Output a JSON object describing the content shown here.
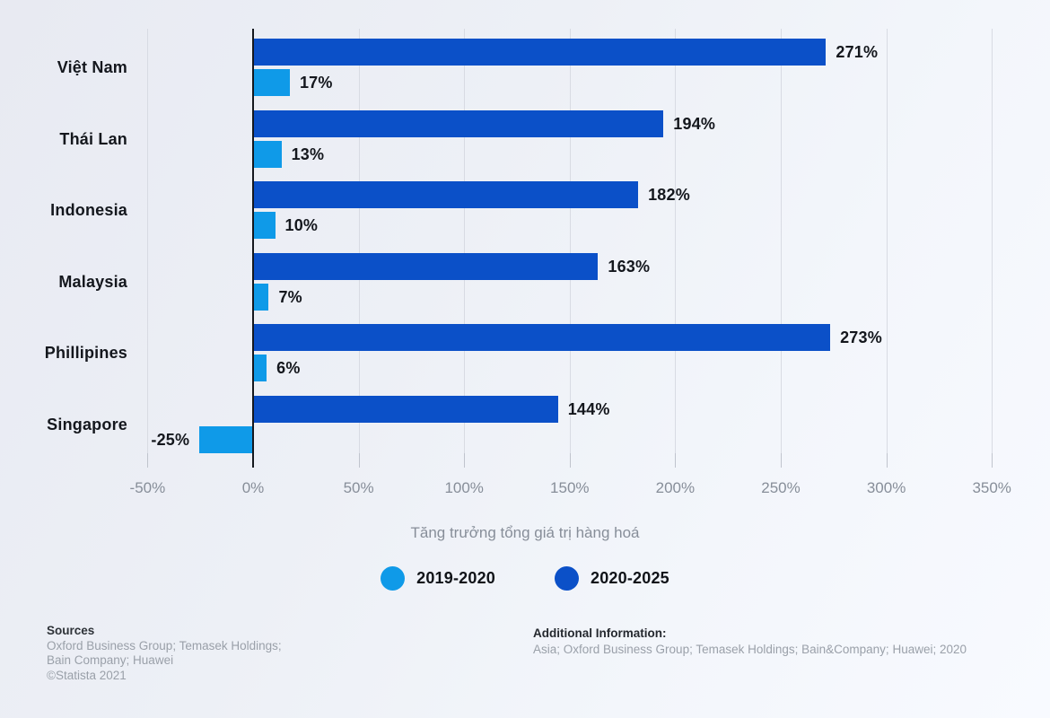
{
  "chart_data": {
    "type": "bar",
    "orientation": "horizontal",
    "categories": [
      "Việt Nam",
      "Thái Lan",
      "Indonesia",
      "Malaysia",
      "Phillipines",
      "Singapore"
    ],
    "series": [
      {
        "name": "2020-2025",
        "color": "#0b50c8",
        "values": [
          271,
          194,
          182,
          163,
          273,
          144
        ],
        "labels": [
          "271%",
          "194%",
          "182%",
          "163%",
          "273%",
          "144%"
        ]
      },
      {
        "name": "2019-2020",
        "color": "#0f9ae8",
        "values": [
          17,
          13,
          10,
          7,
          6,
          -25
        ],
        "labels": [
          "17%",
          "13%",
          "10%",
          "7%",
          "6%",
          "-25%"
        ]
      }
    ],
    "x_axis": {
      "range": [
        -50,
        350
      ],
      "ticks": [
        -50,
        0,
        50,
        100,
        150,
        200,
        250,
        300,
        350
      ],
      "tick_labels": [
        "-50%",
        "0%",
        "50%",
        "100%",
        "150%",
        "200%",
        "250%",
        "300%",
        "350%"
      ],
      "title": "Tăng trưởng tổng giá trị hàng hoá"
    },
    "grid": true,
    "legend_position": "bottom"
  },
  "legend": {
    "items": [
      {
        "label": "2019-2020",
        "color": "#0f9ae8"
      },
      {
        "label": "2020-2025",
        "color": "#0b50c8"
      }
    ]
  },
  "footer": {
    "sources_title": "Sources",
    "sources_lines": [
      "Oxford Business Group; Temasek Holdings;",
      "Bain Company; Huawei",
      "©Statista 2021"
    ],
    "additional_title": "Additional Information:",
    "additional_text": "Asia; Oxford Business Group; Temasek Holdings; Bain&Company; Huawei; 2020"
  },
  "colors": {
    "bar_dark": "#0b50c8",
    "bar_light": "#0f9ae8",
    "gridline": "#d8dbe3",
    "axis_line": "#15181e",
    "tick_text": "#878e99",
    "label_text": "#14171d",
    "footer_text": "#9aa0a9"
  }
}
